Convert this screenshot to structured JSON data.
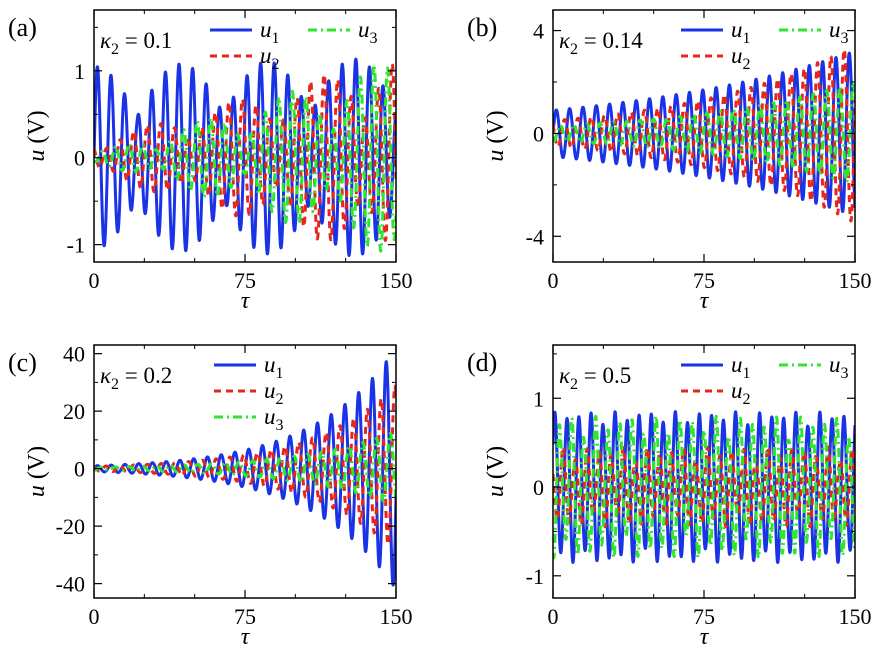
{
  "colors": {
    "u1": "#1a33e6",
    "u2": "#e6261a",
    "u3": "#2ee62e"
  },
  "chart_data": [
    {
      "id": "a",
      "type": "line",
      "panel_label": "(a)",
      "param_symbol": "κ",
      "param_subscript": "2",
      "param_value": " = 0.1",
      "xlabel": "τ",
      "ylabel_sym": "u",
      "ylabel_unit": " (V)",
      "xlim": [
        0,
        150
      ],
      "ylim": [
        -1.2,
        1.7
      ],
      "xticks": [
        0,
        75,
        150
      ],
      "xtick_labels": [
        "0",
        "75",
        "150"
      ],
      "yticks": [
        -1,
        0,
        1
      ],
      "ytick_labels": [
        "-1",
        "0",
        "1"
      ],
      "legend_layout": "two-row",
      "series": [
        {
          "name": "u",
          "sub": "1",
          "key": "u1",
          "style": "solid",
          "model": {
            "kind": "beat",
            "amp_start": 1.05,
            "amp_end": 1.15,
            "omega": 0.93,
            "beat": 0.073,
            "beat_depth": 0.55,
            "phase": 0.0,
            "offset": 0.0
          }
        },
        {
          "name": "u",
          "sub": "2",
          "key": "u2",
          "style": "dash",
          "model": {
            "kind": "beat",
            "amp_start": 0.2,
            "amp_end": 1.2,
            "omega": 0.93,
            "beat": 0.073,
            "beat_depth": 0.6,
            "phase": 2.1,
            "offset": 1.2
          }
        },
        {
          "name": "u",
          "sub": "3",
          "key": "u3",
          "style": "dashdot",
          "model": {
            "kind": "beat",
            "amp_start": 0.05,
            "amp_end": 1.15,
            "omega": 0.93,
            "beat": 0.073,
            "beat_depth": 0.7,
            "phase": 4.2,
            "offset": 2.4
          }
        }
      ]
    },
    {
      "id": "b",
      "type": "line",
      "panel_label": "(b)",
      "param_symbol": "κ",
      "param_subscript": "2",
      "param_value": " = 0.14",
      "xlabel": "τ",
      "ylabel_sym": "u",
      "ylabel_unit": " (V)",
      "xlim": [
        0,
        150
      ],
      "ylim": [
        -5.0,
        4.8
      ],
      "xticks": [
        0,
        75,
        150
      ],
      "xtick_labels": [
        "0",
        "75",
        "150"
      ],
      "yticks": [
        -4,
        0,
        4
      ],
      "ytick_labels": [
        "-4",
        "0",
        "4"
      ],
      "legend_layout": "two-row",
      "series": [
        {
          "name": "u",
          "sub": "1",
          "key": "u1",
          "style": "solid",
          "model": {
            "kind": "growth",
            "amp_start": 0.9,
            "amp_end": 3.2,
            "omega": 0.95,
            "phase": 0.0
          }
        },
        {
          "name": "u",
          "sub": "2",
          "key": "u2",
          "style": "dash",
          "model": {
            "kind": "growth",
            "amp_start": 0.5,
            "amp_end": 3.5,
            "omega": 0.95,
            "phase": 2.4
          }
        },
        {
          "name": "u",
          "sub": "3",
          "key": "u3",
          "style": "dashdot",
          "model": {
            "kind": "growth",
            "amp_start": 0.3,
            "amp_end": 2.0,
            "omega": 0.95,
            "phase": 4.4
          }
        }
      ]
    },
    {
      "id": "c",
      "type": "line",
      "panel_label": "(c)",
      "param_symbol": "κ",
      "param_subscript": "2",
      "param_value": " = 0.2",
      "xlabel": "τ",
      "ylabel_sym": "u",
      "ylabel_unit": " (V)",
      "xlim": [
        0,
        150
      ],
      "ylim": [
        -45,
        43
      ],
      "xticks": [
        0,
        75,
        150
      ],
      "xtick_labels": [
        "0",
        "75",
        "150"
      ],
      "yticks": [
        -40,
        -20,
        0,
        20,
        40
      ],
      "ytick_labels": [
        "-40",
        "-20",
        "0",
        "20",
        "40"
      ],
      "legend_layout": "column",
      "series": [
        {
          "name": "u",
          "sub": "1",
          "key": "u1",
          "style": "solid",
          "model": {
            "kind": "growth",
            "amp_start": 1.0,
            "amp_end": 42,
            "omega": 0.92,
            "phase": 0.0
          }
        },
        {
          "name": "u",
          "sub": "2",
          "key": "u2",
          "style": "dash",
          "model": {
            "kind": "growth",
            "amp_start": 0.8,
            "amp_end": 29,
            "omega": 0.92,
            "phase": 2.3
          }
        },
        {
          "name": "u",
          "sub": "3",
          "key": "u3",
          "style": "dashdot",
          "model": {
            "kind": "growth",
            "amp_start": 0.5,
            "amp_end": 13,
            "omega": 0.92,
            "phase": 4.4
          }
        }
      ]
    },
    {
      "id": "d",
      "type": "line",
      "panel_label": "(d)",
      "param_symbol": "κ",
      "param_subscript": "2",
      "param_value": " = 0.5",
      "xlabel": "τ",
      "ylabel_sym": "u",
      "ylabel_unit": " (V)",
      "xlim": [
        0,
        150
      ],
      "ylim": [
        -1.25,
        1.6
      ],
      "xticks": [
        0,
        75,
        150
      ],
      "xtick_labels": [
        "0",
        "75",
        "150"
      ],
      "yticks": [
        -1,
        0,
        1
      ],
      "ytick_labels": [
        "-1",
        "0",
        "1"
      ],
      "legend_layout": "two-row",
      "series": [
        {
          "name": "u",
          "sub": "1",
          "key": "u1",
          "style": "solid",
          "model": {
            "kind": "beat",
            "amp_start": 0.85,
            "amp_end": 0.85,
            "omega": 1.05,
            "beat": 0.31,
            "beat_depth": 0.2,
            "phase": 0.6,
            "offset": 0.0
          }
        },
        {
          "name": "u",
          "sub": "2",
          "key": "u2",
          "style": "dash",
          "model": {
            "kind": "beat",
            "amp_start": 0.45,
            "amp_end": 0.45,
            "omega": 1.05,
            "beat": 0.31,
            "beat_depth": 0.4,
            "phase": 2.6,
            "offset": 1.5
          }
        },
        {
          "name": "u",
          "sub": "3",
          "key": "u3",
          "style": "dashdot",
          "model": {
            "kind": "beat",
            "amp_start": 0.8,
            "amp_end": 0.8,
            "omega": 1.05,
            "beat": 0.31,
            "beat_depth": 0.35,
            "phase": 4.4,
            "offset": 3.0
          }
        }
      ]
    }
  ]
}
